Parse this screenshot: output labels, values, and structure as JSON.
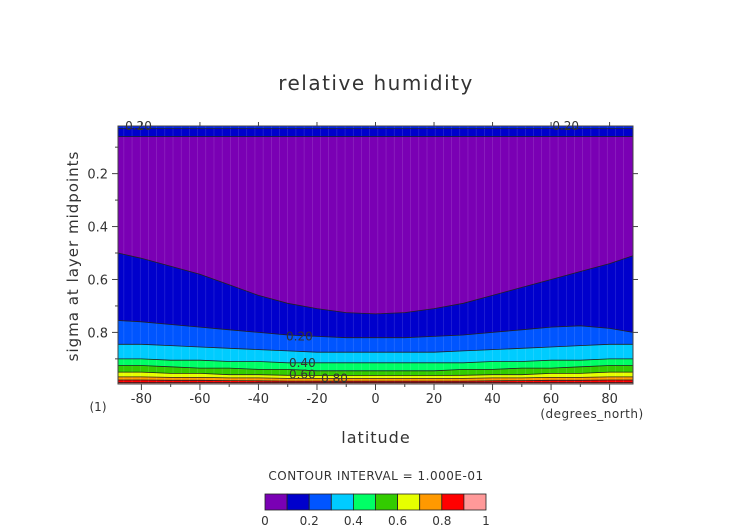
{
  "chart_data": {
    "type": "contour",
    "title": "relative humidity",
    "xlabel": "latitude",
    "ylabel": "sigma at layer midpoints",
    "x_unit": "(degrees_north)",
    "page_label": "(1)",
    "xlim": [
      -88,
      88
    ],
    "ylim": [
      0.02,
      0.995
    ],
    "y_inverted": true,
    "x_ticks": [
      -80,
      -60,
      -40,
      -20,
      0,
      20,
      40,
      60,
      80
    ],
    "y_ticks": [
      0.2,
      0.4,
      0.6,
      0.8
    ],
    "x_tick_labels": [
      "-80",
      "-60",
      "-40",
      "-20",
      "0",
      "20",
      "40",
      "60",
      "80"
    ],
    "y_tick_labels": [
      "0.2",
      "0.4",
      "0.6",
      "0.8"
    ],
    "contour_interval_text": "CONTOUR INTERVAL = 1.000E-01",
    "contour_labels": [
      {
        "text": "0.20",
        "lat": -81,
        "sigma": 0.02
      },
      {
        "text": "0.20",
        "lat": 65,
        "sigma": 0.02
      },
      {
        "text": "0.20",
        "lat": -26,
        "sigma": 0.815
      },
      {
        "text": "0.40",
        "lat": -25,
        "sigma": 0.915
      },
      {
        "text": "0.60",
        "lat": -25,
        "sigma": 0.96
      },
      {
        "text": "0.80",
        "lat": -14,
        "sigma": 0.975
      }
    ],
    "color_levels": [
      0,
      0.1,
      0.2,
      0.3,
      0.4,
      0.5,
      0.6,
      0.7,
      0.8,
      0.9,
      1.0
    ],
    "colorbar_tick_values": [
      0,
      0.2,
      0.4,
      0.6,
      0.8,
      1
    ],
    "colorbar_tick_labels": [
      "0",
      "0.2",
      "0.4",
      "0.6",
      "0.8",
      "1"
    ],
    "band_colors": [
      "#7a00b4",
      "#0000cc",
      "#0055ff",
      "#00ccff",
      "#00ff66",
      "#33cc00",
      "#e6ff00",
      "#ff9900",
      "#ff0000",
      "#ff9999"
    ],
    "contour_boundaries": {
      "lat": [
        -88,
        -80,
        -70,
        -60,
        -50,
        -40,
        -30,
        -20,
        -10,
        0,
        10,
        20,
        30,
        40,
        50,
        60,
        70,
        80,
        88
      ],
      "upper": [
        {
          "level": 0.1,
          "sigma": [
            0.5,
            0.52,
            0.55,
            0.58,
            0.62,
            0.66,
            0.69,
            0.71,
            0.725,
            0.73,
            0.725,
            0.71,
            0.69,
            0.66,
            0.63,
            0.6,
            0.57,
            0.54,
            0.51
          ]
        },
        {
          "level": 0.2,
          "sigma": [
            0.06,
            0.06,
            0.06,
            0.06,
            0.06,
            0.06,
            0.06,
            0.06,
            0.06,
            0.06,
            0.06,
            0.06,
            0.06,
            0.06,
            0.06,
            0.06,
            0.06,
            0.06,
            0.06
          ]
        },
        {
          "level": 0.3,
          "sigma": [
            0.03,
            0.03,
            0.03,
            0.03,
            0.03,
            0.03,
            0.03,
            0.03,
            0.03,
            0.03,
            0.03,
            0.03,
            0.03,
            0.03,
            0.03,
            0.03,
            0.03,
            0.03,
            0.03
          ]
        }
      ],
      "lower": [
        {
          "level": 0.2,
          "sigma": [
            0.755,
            0.76,
            0.77,
            0.78,
            0.79,
            0.8,
            0.81,
            0.815,
            0.82,
            0.82,
            0.82,
            0.815,
            0.81,
            0.8,
            0.79,
            0.78,
            0.775,
            0.785,
            0.8
          ]
        },
        {
          "level": 0.3,
          "sigma": [
            0.845,
            0.845,
            0.85,
            0.855,
            0.86,
            0.865,
            0.87,
            0.875,
            0.875,
            0.875,
            0.875,
            0.875,
            0.87,
            0.865,
            0.86,
            0.855,
            0.85,
            0.845,
            0.845
          ]
        },
        {
          "level": 0.4,
          "sigma": [
            0.9,
            0.9,
            0.905,
            0.905,
            0.91,
            0.91,
            0.915,
            0.915,
            0.915,
            0.915,
            0.915,
            0.915,
            0.915,
            0.91,
            0.91,
            0.905,
            0.905,
            0.9,
            0.9
          ]
        },
        {
          "level": 0.5,
          "sigma": [
            0.925,
            0.925,
            0.93,
            0.935,
            0.935,
            0.94,
            0.94,
            0.945,
            0.945,
            0.945,
            0.945,
            0.945,
            0.94,
            0.94,
            0.935,
            0.935,
            0.93,
            0.925,
            0.925
          ]
        },
        {
          "level": 0.6,
          "sigma": [
            0.95,
            0.95,
            0.955,
            0.955,
            0.96,
            0.96,
            0.962,
            0.963,
            0.963,
            0.963,
            0.963,
            0.963,
            0.962,
            0.96,
            0.96,
            0.955,
            0.955,
            0.95,
            0.95
          ]
        },
        {
          "level": 0.7,
          "sigma": [
            0.968,
            0.968,
            0.97,
            0.97,
            0.972,
            0.972,
            0.974,
            0.974,
            0.974,
            0.974,
            0.974,
            0.974,
            0.974,
            0.972,
            0.972,
            0.97,
            0.97,
            0.968,
            0.968
          ]
        },
        {
          "level": 0.8,
          "sigma": [
            0.98,
            0.98,
            0.981,
            0.981,
            0.982,
            0.983,
            0.984,
            0.984,
            0.984,
            0.984,
            0.984,
            0.984,
            0.984,
            0.983,
            0.982,
            0.981,
            0.981,
            0.98,
            0.98
          ]
        },
        {
          "level": 0.9,
          "sigma": [
            0.99,
            0.99,
            0.99,
            0.99,
            0.99,
            0.99,
            0.99,
            0.99,
            0.99,
            0.99,
            0.99,
            0.99,
            0.99,
            0.99,
            0.99,
            0.99,
            0.99,
            0.99,
            0.99
          ]
        }
      ]
    },
    "grid_lines": true
  }
}
